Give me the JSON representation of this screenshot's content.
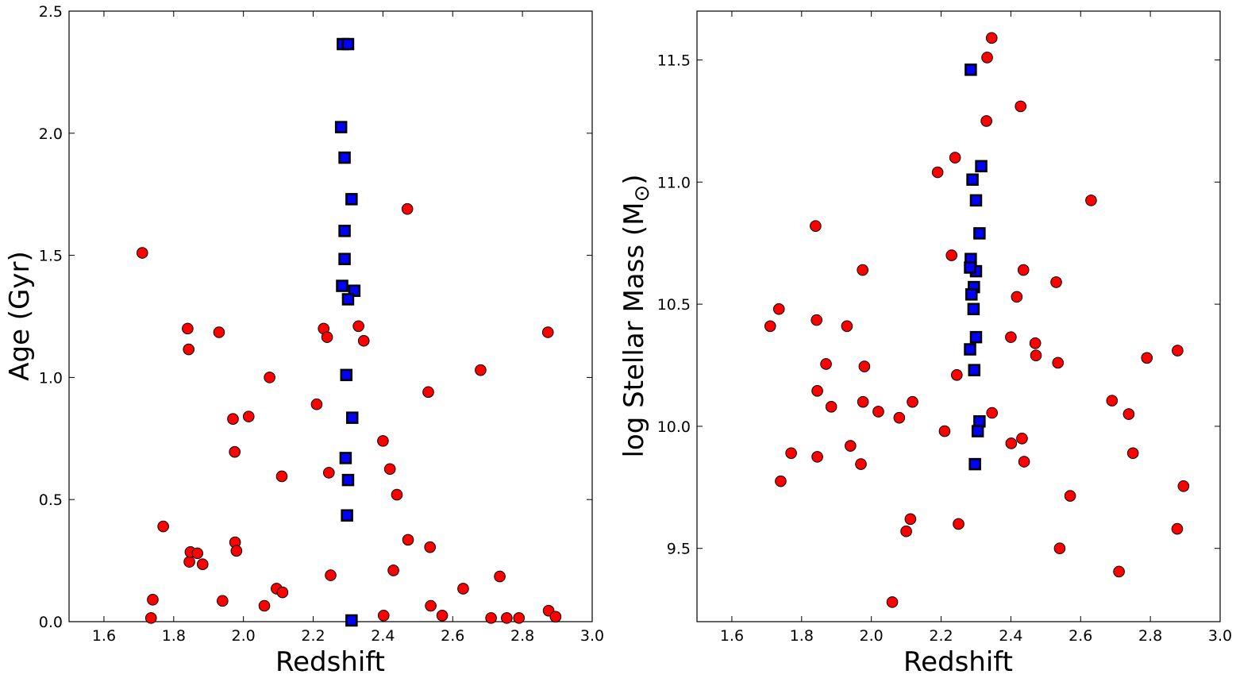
{
  "chart_data": [
    {
      "type": "scatter",
      "xlabel": "Redshift",
      "ylabel": "Age (Gyr)",
      "xlim": [
        1.5,
        3.0
      ],
      "ylim": [
        0.0,
        2.5
      ],
      "xticks": [
        1.6,
        1.8,
        2.0,
        2.2,
        2.4,
        2.6,
        2.8,
        3.0
      ],
      "yticks": [
        0.0,
        0.5,
        1.0,
        1.5,
        2.0,
        2.5
      ],
      "xtick_labels": [
        "1.6",
        "1.8",
        "2.0",
        "2.2",
        "2.4",
        "2.6",
        "2.8",
        "3.0"
      ],
      "ytick_labels": [
        "0.0",
        "0.5",
        "1.0",
        "1.5",
        "2.0",
        "2.5"
      ],
      "grid": false,
      "series": [
        {
          "marker": "circle",
          "color": "#ff0000",
          "points": [
            [
              1.71,
              1.51
            ],
            [
              1.735,
              0.015
            ],
            [
              1.74,
              0.09
            ],
            [
              1.77,
              0.39
            ],
            [
              1.84,
              1.2
            ],
            [
              1.843,
              1.115
            ],
            [
              1.845,
              0.245
            ],
            [
              1.848,
              0.285
            ],
            [
              1.868,
              0.28
            ],
            [
              1.883,
              0.235
            ],
            [
              1.93,
              1.185
            ],
            [
              1.94,
              0.085
            ],
            [
              1.97,
              0.83
            ],
            [
              1.975,
              0.695
            ],
            [
              1.976,
              0.325
            ],
            [
              1.98,
              0.29
            ],
            [
              2.015,
              0.84
            ],
            [
              2.06,
              0.065
            ],
            [
              2.075,
              1.0
            ],
            [
              2.095,
              0.135
            ],
            [
              2.11,
              0.595
            ],
            [
              2.112,
              0.12
            ],
            [
              2.21,
              0.89
            ],
            [
              2.23,
              1.2
            ],
            [
              2.24,
              1.165
            ],
            [
              2.245,
              0.61
            ],
            [
              2.25,
              0.19
            ],
            [
              2.33,
              1.21
            ],
            [
              2.345,
              1.15
            ],
            [
              2.4,
              0.74
            ],
            [
              2.402,
              0.025
            ],
            [
              2.42,
              0.625
            ],
            [
              2.43,
              0.21
            ],
            [
              2.44,
              0.52
            ],
            [
              2.47,
              1.69
            ],
            [
              2.472,
              0.335
            ],
            [
              2.53,
              0.94
            ],
            [
              2.535,
              0.305
            ],
            [
              2.537,
              0.065
            ],
            [
              2.57,
              0.025
            ],
            [
              2.63,
              0.135
            ],
            [
              2.68,
              1.03
            ],
            [
              2.71,
              0.015
            ],
            [
              2.735,
              0.185
            ],
            [
              2.755,
              0.015
            ],
            [
              2.79,
              0.015
            ],
            [
              2.873,
              1.185
            ],
            [
              2.875,
              0.045
            ],
            [
              2.895,
              0.02
            ]
          ]
        },
        {
          "marker": "square",
          "color": "#0000ff",
          "points": [
            [
              2.285,
              2.365
            ],
            [
              2.3,
              2.365
            ],
            [
              2.28,
              2.025
            ],
            [
              2.29,
              1.9
            ],
            [
              2.31,
              1.73
            ],
            [
              2.29,
              1.6
            ],
            [
              2.29,
              1.485
            ],
            [
              2.283,
              1.375
            ],
            [
              2.318,
              1.355
            ],
            [
              2.3,
              1.32
            ],
            [
              2.295,
              1.01
            ],
            [
              2.312,
              0.835
            ],
            [
              2.293,
              0.67
            ],
            [
              2.3,
              0.58
            ],
            [
              2.297,
              0.435
            ],
            [
              2.31,
              0.005
            ]
          ]
        }
      ]
    },
    {
      "type": "scatter",
      "xlabel": "Redshift",
      "ylabel": "log Stellar Mass (M",
      "ylabel_symbol": "⊙",
      "ylabel_close": ")",
      "xlim": [
        1.5,
        3.0
      ],
      "ylim": [
        9.2,
        11.7
      ],
      "xticks": [
        1.6,
        1.8,
        2.0,
        2.2,
        2.4,
        2.6,
        2.8,
        3.0
      ],
      "yticks": [
        9.5,
        10.0,
        10.5,
        11.0,
        11.5
      ],
      "xtick_labels": [
        "1.6",
        "1.8",
        "2.0",
        "2.2",
        "2.4",
        "2.6",
        "2.8",
        "3.0"
      ],
      "ytick_labels": [
        "9.5",
        "10.0",
        "10.5",
        "11.0",
        "11.5"
      ],
      "grid": false,
      "series": [
        {
          "marker": "circle",
          "color": "#ff0000",
          "points": [
            [
              1.71,
              10.41
            ],
            [
              1.735,
              10.48
            ],
            [
              1.74,
              9.775
            ],
            [
              1.77,
              9.89
            ],
            [
              1.84,
              10.82
            ],
            [
              1.843,
              10.435
            ],
            [
              1.845,
              10.145
            ],
            [
              1.845,
              9.875
            ],
            [
              1.87,
              10.255
            ],
            [
              1.885,
              10.08
            ],
            [
              1.93,
              10.41
            ],
            [
              1.94,
              9.92
            ],
            [
              1.97,
              9.845
            ],
            [
              1.975,
              10.64
            ],
            [
              1.976,
              10.1
            ],
            [
              1.98,
              10.245
            ],
            [
              2.02,
              10.06
            ],
            [
              2.06,
              9.28
            ],
            [
              2.08,
              10.035
            ],
            [
              2.1,
              9.57
            ],
            [
              2.112,
              9.62
            ],
            [
              2.118,
              10.1
            ],
            [
              2.19,
              11.04
            ],
            [
              2.21,
              9.98
            ],
            [
              2.23,
              10.7
            ],
            [
              2.24,
              11.1
            ],
            [
              2.245,
              10.21
            ],
            [
              2.25,
              9.6
            ],
            [
              2.33,
              11.25
            ],
            [
              2.332,
              11.51
            ],
            [
              2.345,
              11.59
            ],
            [
              2.346,
              10.055
            ],
            [
              2.4,
              10.365
            ],
            [
              2.401,
              9.93
            ],
            [
              2.417,
              10.53
            ],
            [
              2.428,
              11.31
            ],
            [
              2.432,
              9.95
            ],
            [
              2.436,
              10.64
            ],
            [
              2.438,
              9.855
            ],
            [
              2.47,
              10.34
            ],
            [
              2.472,
              10.29
            ],
            [
              2.53,
              10.59
            ],
            [
              2.535,
              10.26
            ],
            [
              2.54,
              9.5
            ],
            [
              2.57,
              9.715
            ],
            [
              2.63,
              10.925
            ],
            [
              2.69,
              10.105
            ],
            [
              2.71,
              9.405
            ],
            [
              2.738,
              10.05
            ],
            [
              2.75,
              9.89
            ],
            [
              2.79,
              10.28
            ],
            [
              2.878,
              10.31
            ],
            [
              2.877,
              9.58
            ],
            [
              2.895,
              9.755
            ]
          ]
        },
        {
          "marker": "square",
          "color": "#0000ff",
          "points": [
            [
              2.285,
              11.46
            ],
            [
              2.315,
              11.065
            ],
            [
              2.29,
              11.01
            ],
            [
              2.3,
              10.925
            ],
            [
              2.31,
              10.79
            ],
            [
              2.285,
              10.685
            ],
            [
              2.3,
              10.635
            ],
            [
              2.283,
              10.65
            ],
            [
              2.294,
              10.57
            ],
            [
              2.287,
              10.54
            ],
            [
              2.293,
              10.48
            ],
            [
              2.3,
              10.365
            ],
            [
              2.283,
              10.315
            ],
            [
              2.295,
              10.23
            ],
            [
              2.31,
              10.02
            ],
            [
              2.305,
              9.98
            ],
            [
              2.297,
              9.845
            ]
          ]
        }
      ]
    }
  ]
}
